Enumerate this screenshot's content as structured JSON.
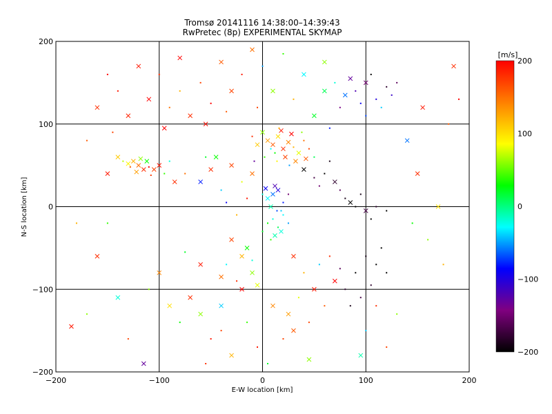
{
  "chart_data": {
    "type": "scatter",
    "title": "Tromsø 20141116 14:38:00–14:39:43",
    "subtitle": "RwPretec (8p) EXPERIMENTAL SKYMAP",
    "xlabel": "E-W location [km]",
    "ylabel": "N-S location [km]",
    "xlim": [
      -200,
      200
    ],
    "ylim": [
      -200,
      200
    ],
    "xticks": [
      "−200",
      "−100",
      "0",
      "100",
      "200"
    ],
    "yticks": [
      "−200",
      "−100",
      "0",
      "100",
      "200"
    ],
    "grid": true,
    "colorbar": {
      "unit": "[m/s]",
      "range": [
        -200,
        200
      ],
      "ticks": [
        "200",
        "100",
        "0",
        "−100",
        "−200"
      ],
      "colors": [
        "#000000",
        "#800080",
        "#0000ff",
        "#00ffff",
        "#00ff00",
        "#ffff00",
        "#ff8000",
        "#ff0000"
      ]
    },
    "markers": [
      "dot",
      "cross"
    ],
    "points": [
      [
        -120,
        50,
        150,
        1
      ],
      [
        -125,
        55,
        120,
        1
      ],
      [
        -115,
        45,
        180,
        1
      ],
      [
        -130,
        52,
        90,
        1
      ],
      [
        -110,
        48,
        200,
        0
      ],
      [
        -118,
        58,
        60,
        1
      ],
      [
        -105,
        45,
        170,
        1
      ],
      [
        -135,
        55,
        70,
        0
      ],
      [
        -122,
        42,
        130,
        1
      ],
      [
        -100,
        50,
        190,
        1
      ],
      [
        -95,
        40,
        40,
        0
      ],
      [
        -140,
        60,
        110,
        1
      ],
      [
        -128,
        48,
        160,
        0
      ],
      [
        -112,
        55,
        30,
        1
      ],
      [
        -108,
        38,
        175,
        0
      ],
      [
        -90,
        55,
        -20,
        0
      ],
      [
        -85,
        30,
        180,
        1
      ],
      [
        -75,
        40,
        150,
        0
      ],
      [
        -60,
        30,
        -80,
        1
      ],
      [
        -55,
        60,
        20,
        0
      ],
      [
        5,
        80,
        130,
        1
      ],
      [
        10,
        75,
        160,
        1
      ],
      [
        15,
        85,
        100,
        1
      ],
      [
        20,
        70,
        180,
        1
      ],
      [
        0,
        90,
        60,
        1
      ],
      [
        25,
        78,
        140,
        1
      ],
      [
        12,
        65,
        30,
        0
      ],
      [
        18,
        92,
        190,
        1
      ],
      [
        30,
        72,
        120,
        0
      ],
      [
        8,
        70,
        -30,
        0
      ],
      [
        22,
        60,
        170,
        1
      ],
      [
        35,
        65,
        80,
        1
      ],
      [
        40,
        80,
        150,
        0
      ],
      [
        -5,
        75,
        110,
        1
      ],
      [
        28,
        88,
        200,
        1
      ],
      [
        14,
        55,
        90,
        0
      ],
      [
        45,
        70,
        170,
        0
      ],
      [
        2,
        60,
        40,
        0
      ],
      [
        32,
        55,
        140,
        1
      ],
      [
        38,
        90,
        60,
        0
      ],
      [
        50,
        60,
        10,
        0
      ],
      [
        -10,
        85,
        180,
        0
      ],
      [
        16,
        95,
        120,
        0
      ],
      [
        26,
        50,
        -50,
        0
      ],
      [
        42,
        58,
        160,
        1
      ],
      [
        10,
        15,
        -60,
        1
      ],
      [
        15,
        20,
        -100,
        1
      ],
      [
        5,
        10,
        -30,
        1
      ],
      [
        20,
        5,
        -80,
        0
      ],
      [
        12,
        25,
        -120,
        1
      ],
      [
        0,
        15,
        -20,
        0
      ],
      [
        8,
        0,
        -10,
        1
      ],
      [
        25,
        15,
        -150,
        0
      ],
      [
        18,
        -5,
        -40,
        0
      ],
      [
        3,
        22,
        -90,
        1
      ],
      [
        10,
        -15,
        -20,
        0
      ],
      [
        15,
        -25,
        10,
        0
      ],
      [
        20,
        -10,
        -30,
        0
      ],
      [
        5,
        -20,
        30,
        0
      ],
      [
        12,
        -35,
        -10,
        1
      ],
      [
        0,
        -30,
        20,
        0
      ],
      [
        25,
        -20,
        -50,
        0
      ],
      [
        8,
        -40,
        40,
        0
      ],
      [
        18,
        -30,
        -20,
        1
      ],
      [
        14,
        -5,
        -70,
        0
      ],
      [
        60,
        40,
        -200,
        0
      ],
      [
        70,
        30,
        -180,
        1
      ],
      [
        80,
        10,
        -190,
        0
      ],
      [
        90,
        0,
        -200,
        0
      ],
      [
        100,
        -5,
        -170,
        1
      ],
      [
        75,
        20,
        -160,
        0
      ],
      [
        65,
        55,
        -190,
        0
      ],
      [
        85,
        5,
        -200,
        1
      ],
      [
        110,
        0,
        -180,
        0
      ],
      [
        120,
        -5,
        -200,
        0
      ],
      [
        55,
        25,
        -150,
        0
      ],
      [
        95,
        15,
        -190,
        0
      ],
      [
        105,
        -15,
        -200,
        0
      ],
      [
        40,
        45,
        -200,
        1
      ],
      [
        50,
        35,
        -170,
        0
      ],
      [
        90,
        140,
        -120,
        0
      ],
      [
        100,
        150,
        -150,
        1
      ],
      [
        110,
        130,
        -100,
        0
      ],
      [
        120,
        145,
        -180,
        0
      ],
      [
        80,
        135,
        -60,
        1
      ],
      [
        95,
        125,
        -90,
        0
      ],
      [
        105,
        160,
        -200,
        0
      ],
      [
        115,
        120,
        -40,
        0
      ],
      [
        85,
        155,
        -130,
        1
      ],
      [
        125,
        135,
        -110,
        0
      ],
      [
        70,
        150,
        -20,
        0
      ],
      [
        60,
        140,
        10,
        1
      ],
      [
        130,
        150,
        -160,
        0
      ],
      [
        100,
        110,
        -70,
        0
      ],
      [
        75,
        120,
        -140,
        0
      ],
      [
        -120,
        170,
        190,
        1
      ],
      [
        -100,
        160,
        180,
        0
      ],
      [
        -80,
        180,
        200,
        1
      ],
      [
        -60,
        150,
        170,
        0
      ],
      [
        -40,
        175,
        160,
        1
      ],
      [
        -140,
        140,
        190,
        0
      ],
      [
        -110,
        130,
        200,
        1
      ],
      [
        -90,
        120,
        150,
        0
      ],
      [
        -70,
        110,
        180,
        1
      ],
      [
        -50,
        125,
        200,
        0
      ],
      [
        -30,
        140,
        170,
        1
      ],
      [
        -20,
        160,
        190,
        0
      ],
      [
        -130,
        110,
        185,
        1
      ],
      [
        -150,
        160,
        200,
        0
      ],
      [
        -160,
        120,
        180,
        1
      ],
      [
        -80,
        140,
        120,
        0
      ],
      [
        -55,
        100,
        195,
        1
      ],
      [
        -35,
        115,
        160,
        0
      ],
      [
        -95,
        95,
        200,
        1
      ],
      [
        -145,
        90,
        170,
        0
      ],
      [
        -30,
        -40,
        170,
        1
      ],
      [
        -20,
        -60,
        120,
        1
      ],
      [
        -10,
        -80,
        60,
        1
      ],
      [
        -25,
        -90,
        180,
        0
      ],
      [
        -15,
        -50,
        30,
        1
      ],
      [
        -35,
        -70,
        -30,
        0
      ],
      [
        -5,
        -95,
        80,
        1
      ],
      [
        -40,
        -85,
        150,
        1
      ],
      [
        -20,
        -100,
        200,
        1
      ],
      [
        -10,
        -65,
        -20,
        0
      ],
      [
        -60,
        -130,
        60,
        1
      ],
      [
        -70,
        -110,
        180,
        1
      ],
      [
        -80,
        -140,
        30,
        0
      ],
      [
        -50,
        -160,
        190,
        0
      ],
      [
        -90,
        -120,
        100,
        1
      ],
      [
        -40,
        -150,
        170,
        0
      ],
      [
        -100,
        -80,
        140,
        1
      ],
      [
        -110,
        -100,
        60,
        0
      ],
      [
        -60,
        -70,
        190,
        1
      ],
      [
        -75,
        -55,
        20,
        0
      ],
      [
        30,
        -60,
        180,
        1
      ],
      [
        40,
        -80,
        120,
        0
      ],
      [
        50,
        -100,
        190,
        1
      ],
      [
        60,
        -120,
        160,
        0
      ],
      [
        70,
        -90,
        200,
        1
      ],
      [
        35,
        -110,
        80,
        0
      ],
      [
        45,
        -140,
        170,
        0
      ],
      [
        55,
        -70,
        -40,
        0
      ],
      [
        25,
        -130,
        130,
        1
      ],
      [
        65,
        -60,
        180,
        0
      ],
      [
        80,
        -100,
        -180,
        0
      ],
      [
        90,
        -80,
        -200,
        0
      ],
      [
        100,
        -60,
        -190,
        0
      ],
      [
        110,
        -70,
        -200,
        0
      ],
      [
        95,
        -110,
        -170,
        0
      ],
      [
        85,
        -120,
        -190,
        0
      ],
      [
        120,
        -80,
        -200,
        0
      ],
      [
        105,
        -95,
        -180,
        0
      ],
      [
        115,
        -50,
        -200,
        0
      ],
      [
        75,
        -75,
        -160,
        0
      ],
      [
        -150,
        40,
        190,
        1
      ],
      [
        -170,
        80,
        160,
        0
      ],
      [
        -180,
        -20,
        120,
        0
      ],
      [
        -160,
        -60,
        180,
        1
      ],
      [
        -140,
        -110,
        -20,
        1
      ],
      [
        -185,
        -145,
        190,
        1
      ],
      [
        -130,
        -160,
        170,
        0
      ],
      [
        -115,
        -190,
        -130,
        1
      ],
      [
        -170,
        -130,
        60,
        0
      ],
      [
        -150,
        -20,
        40,
        0
      ],
      [
        150,
        40,
        180,
        1
      ],
      [
        170,
        0,
        100,
        1
      ],
      [
        180,
        100,
        160,
        0
      ],
      [
        160,
        -40,
        60,
        0
      ],
      [
        190,
        130,
        200,
        0
      ],
      [
        140,
        80,
        -60,
        1
      ],
      [
        175,
        -70,
        120,
        0
      ],
      [
        155,
        120,
        190,
        1
      ],
      [
        145,
        -20,
        30,
        0
      ],
      [
        185,
        170,
        180,
        1
      ],
      [
        100,
        -150,
        -40,
        0
      ],
      [
        120,
        -170,
        170,
        0
      ],
      [
        130,
        -130,
        60,
        0
      ],
      [
        95,
        -180,
        -10,
        1
      ],
      [
        110,
        -120,
        180,
        0
      ],
      [
        60,
        175,
        60,
        1
      ],
      [
        40,
        160,
        -30,
        1
      ],
      [
        20,
        185,
        40,
        0
      ],
      [
        0,
        170,
        -50,
        0
      ],
      [
        -10,
        190,
        150,
        1
      ],
      [
        30,
        130,
        120,
        0
      ],
      [
        10,
        140,
        60,
        1
      ],
      [
        50,
        110,
        20,
        1
      ],
      [
        -5,
        120,
        170,
        0
      ],
      [
        65,
        95,
        -80,
        0
      ],
      [
        -10,
        40,
        150,
        1
      ],
      [
        -20,
        30,
        80,
        0
      ],
      [
        -30,
        50,
        170,
        1
      ],
      [
        -40,
        20,
        -40,
        0
      ],
      [
        -15,
        10,
        190,
        0
      ],
      [
        -45,
        60,
        30,
        1
      ],
      [
        -25,
        -10,
        120,
        0
      ],
      [
        -35,
        5,
        -90,
        0
      ],
      [
        -50,
        45,
        180,
        1
      ],
      [
        -8,
        55,
        -130,
        0
      ],
      [
        -5,
        -170,
        190,
        0
      ],
      [
        -30,
        -180,
        120,
        1
      ],
      [
        20,
        -160,
        170,
        0
      ],
      [
        45,
        -185,
        60,
        1
      ],
      [
        -55,
        -190,
        180,
        0
      ],
      [
        10,
        -120,
        140,
        1
      ],
      [
        -15,
        -140,
        40,
        0
      ],
      [
        30,
        -150,
        160,
        1
      ],
      [
        5,
        -190,
        20,
        0
      ],
      [
        -40,
        -120,
        -40,
        1
      ]
    ]
  }
}
